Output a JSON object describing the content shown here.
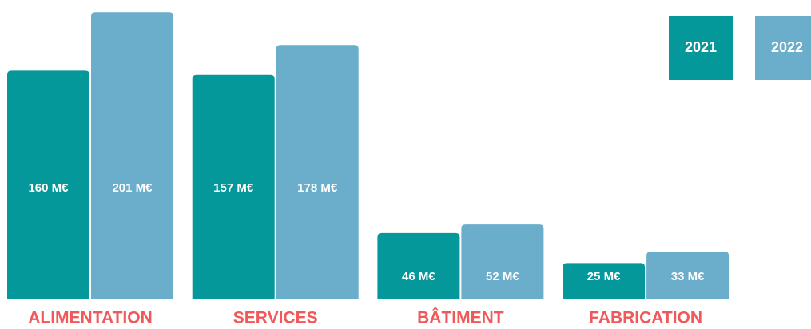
{
  "chart_data": {
    "type": "bar",
    "categories": [
      "ALIMENTATION",
      "SERVICES",
      "BÂTIMENT",
      "FABRICATION"
    ],
    "series": [
      {
        "name": "2021",
        "color": "#04989a",
        "values": [
          160,
          157,
          46,
          25
        ],
        "value_labels": [
          "160 M€",
          "157 M€",
          "46 M€",
          "25 M€"
        ]
      },
      {
        "name": "2022",
        "color": "#6aaecb",
        "values": [
          201,
          178,
          52,
          33
        ],
        "value_labels": [
          "201 M€",
          "178 M€",
          "52 M€",
          "33 M€"
        ]
      }
    ]
  }
}
